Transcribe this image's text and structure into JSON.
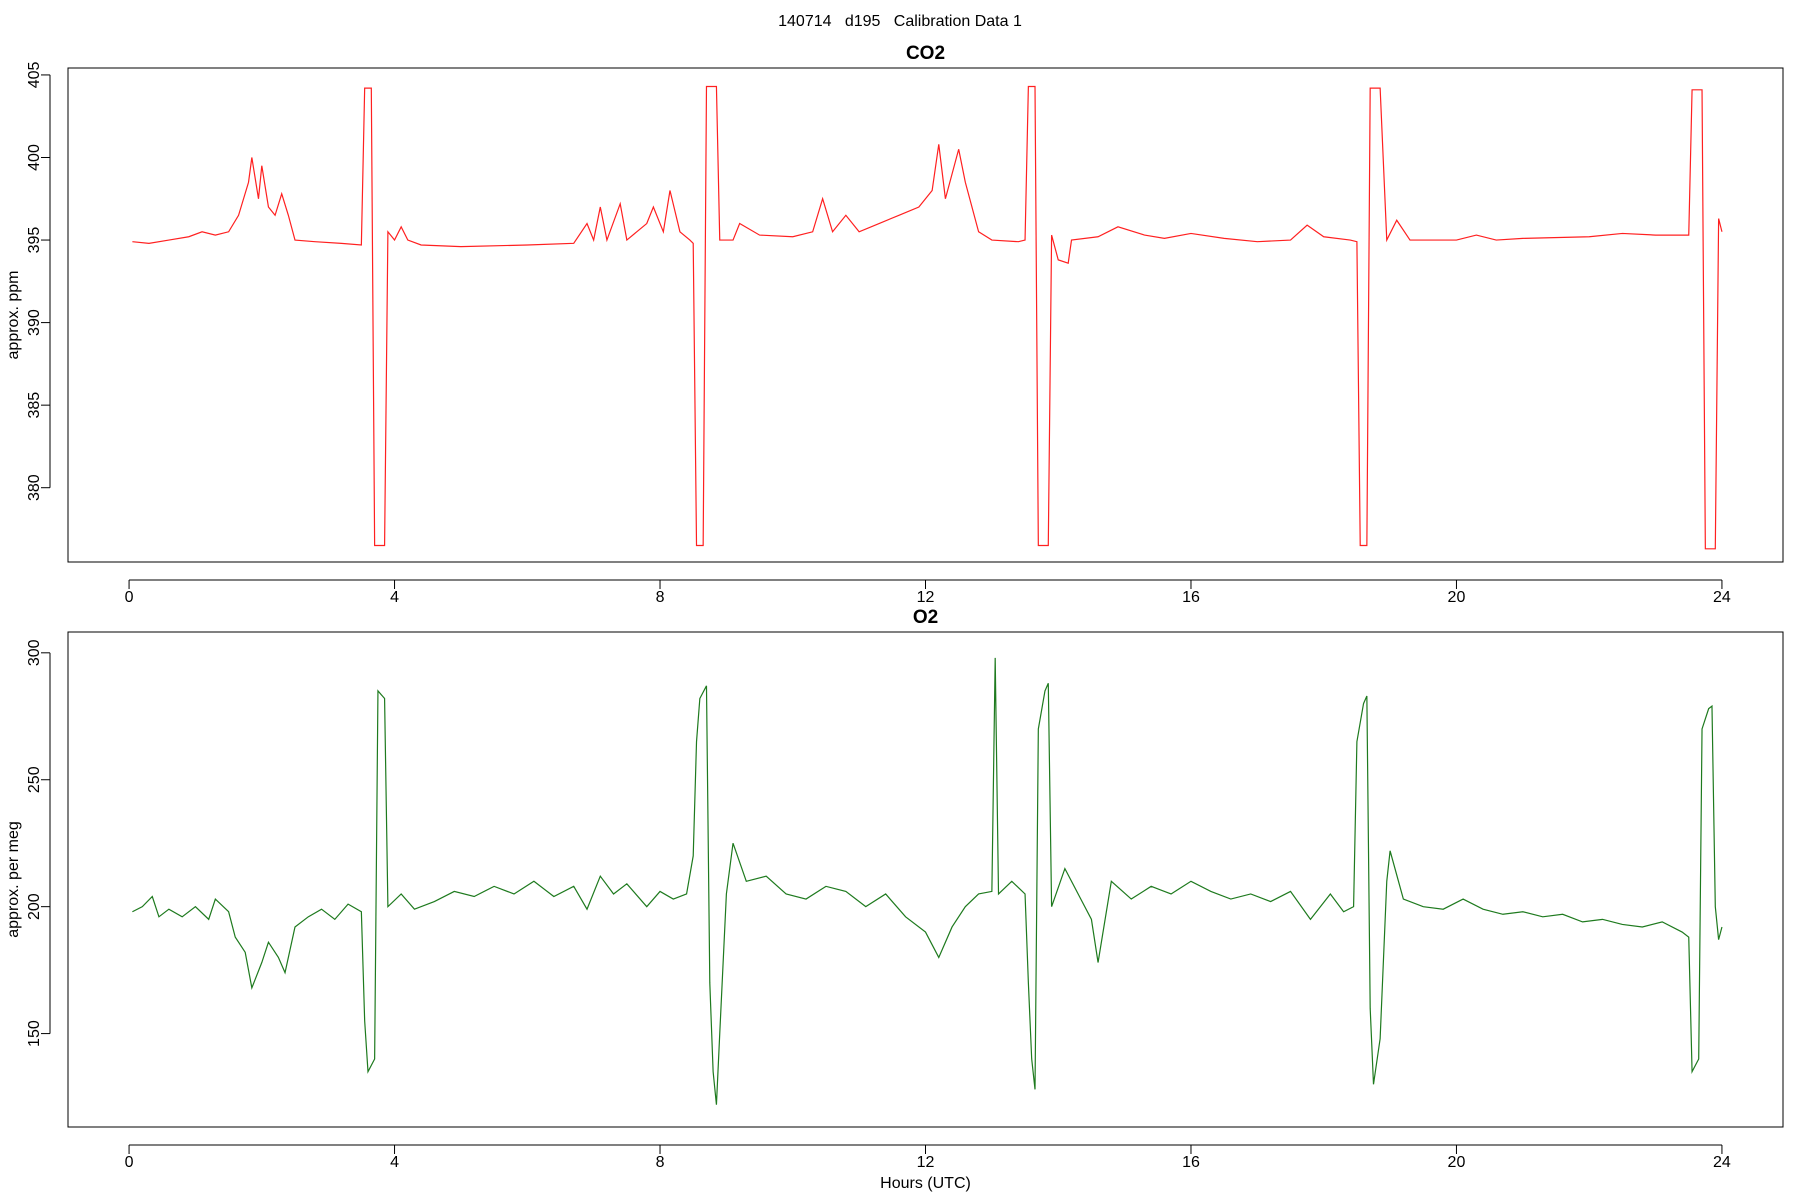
{
  "title": "140714   d195   Calibration Data 1",
  "chart_data": [
    {
      "type": "line",
      "title": "CO2",
      "ylabel": "approx. ppm",
      "color": "#ff2020",
      "xlim": [
        -0.92,
        24.92
      ],
      "xticks": [
        0,
        4,
        8,
        12,
        16,
        20,
        24
      ],
      "ylim": [
        375.5,
        405.42
      ],
      "yticks": [
        380,
        385,
        390,
        395,
        400,
        405
      ],
      "x": [
        0.05,
        0.3,
        0.6,
        0.9,
        1.1,
        1.3,
        1.5,
        1.65,
        1.8,
        1.85,
        1.95,
        2.0,
        2.1,
        2.2,
        2.3,
        2.4,
        2.5,
        2.8,
        3.2,
        3.5,
        3.55,
        3.65,
        3.7,
        3.85,
        3.9,
        4.0,
        4.1,
        4.2,
        4.4,
        5.0,
        6.0,
        6.7,
        6.9,
        7.0,
        7.1,
        7.2,
        7.4,
        7.5,
        7.8,
        7.9,
        8.05,
        8.15,
        8.3,
        8.45,
        8.5,
        8.55,
        8.65,
        8.7,
        8.85,
        8.9,
        9.1,
        9.2,
        9.5,
        10.0,
        10.3,
        10.45,
        10.6,
        10.8,
        11.0,
        11.3,
        11.6,
        11.9,
        12.1,
        12.2,
        12.3,
        12.5,
        12.6,
        12.8,
        13.0,
        13.4,
        13.5,
        13.55,
        13.65,
        13.7,
        13.85,
        13.9,
        14.0,
        14.15,
        14.2,
        14.6,
        14.9,
        15.3,
        15.6,
        16.0,
        16.5,
        17.0,
        17.5,
        17.75,
        18.0,
        18.4,
        18.5,
        18.55,
        18.65,
        18.7,
        18.85,
        18.95,
        19.1,
        19.3,
        20.0,
        20.3,
        20.6,
        21.0,
        22.0,
        22.5,
        23.0,
        23.5,
        23.55,
        23.7,
        23.75,
        23.9,
        23.95,
        24.0
      ],
      "values": [
        394.9,
        394.8,
        395.0,
        395.2,
        395.5,
        395.3,
        395.5,
        396.5,
        398.5,
        400.0,
        397.5,
        399.5,
        397.0,
        396.5,
        397.8,
        396.5,
        395.0,
        394.9,
        394.8,
        394.7,
        404.2,
        404.2,
        376.5,
        376.5,
        395.5,
        395.0,
        395.8,
        395.0,
        394.7,
        394.6,
        394.7,
        394.8,
        396.0,
        395.0,
        397.0,
        395.0,
        397.2,
        395.0,
        396.0,
        397.0,
        395.5,
        398.0,
        395.5,
        395.0,
        394.8,
        376.5,
        376.5,
        404.3,
        404.3,
        395.0,
        395.0,
        396.0,
        395.3,
        395.2,
        395.5,
        397.5,
        395.5,
        396.5,
        395.5,
        396.0,
        396.5,
        397.0,
        398.0,
        400.8,
        397.5,
        400.5,
        398.5,
        395.5,
        395.0,
        394.9,
        395.0,
        404.3,
        404.3,
        376.5,
        376.5,
        395.3,
        393.8,
        393.6,
        395.0,
        395.2,
        395.8,
        395.3,
        395.1,
        395.4,
        395.1,
        394.9,
        395.0,
        395.9,
        395.2,
        395.0,
        394.9,
        376.5,
        376.5,
        404.2,
        404.2,
        395.0,
        396.2,
        395.0,
        395.0,
        395.3,
        395.0,
        395.1,
        395.2,
        395.4,
        395.3,
        395.3,
        404.1,
        404.1,
        376.3,
        376.3,
        396.3,
        395.5
      ]
    },
    {
      "type": "line",
      "title": "O2",
      "ylabel": "approx. per meg",
      "xlabel": "Hours (UTC)",
      "color": "#1e7a1e",
      "xlim": [
        -0.92,
        24.92
      ],
      "xticks": [
        0,
        4,
        8,
        12,
        16,
        20,
        24
      ],
      "ylim": [
        113.2,
        308.2
      ],
      "yticks": [
        150,
        200,
        250,
        300
      ],
      "x": [
        0.05,
        0.2,
        0.35,
        0.45,
        0.6,
        0.8,
        1.0,
        1.2,
        1.3,
        1.5,
        1.6,
        1.75,
        1.85,
        2.0,
        2.1,
        2.25,
        2.35,
        2.5,
        2.7,
        2.9,
        3.1,
        3.3,
        3.5,
        3.55,
        3.6,
        3.7,
        3.75,
        3.85,
        3.9,
        4.1,
        4.3,
        4.6,
        4.9,
        5.2,
        5.5,
        5.8,
        6.1,
        6.4,
        6.7,
        6.9,
        7.1,
        7.3,
        7.5,
        7.8,
        8.0,
        8.2,
        8.4,
        8.5,
        8.55,
        8.6,
        8.7,
        8.75,
        8.8,
        8.85,
        8.9,
        9.0,
        9.1,
        9.3,
        9.6,
        9.9,
        10.2,
        10.5,
        10.8,
        11.1,
        11.4,
        11.7,
        12.0,
        12.2,
        12.4,
        12.6,
        12.8,
        13.0,
        13.05,
        13.1,
        13.3,
        13.5,
        13.55,
        13.6,
        13.65,
        13.7,
        13.8,
        13.85,
        13.9,
        14.1,
        14.3,
        14.5,
        14.6,
        14.8,
        15.1,
        15.4,
        15.7,
        16.0,
        16.3,
        16.6,
        16.9,
        17.2,
        17.5,
        17.8,
        18.1,
        18.3,
        18.45,
        18.5,
        18.6,
        18.65,
        18.7,
        18.75,
        18.85,
        18.95,
        19.0,
        19.2,
        19.5,
        19.8,
        20.1,
        20.4,
        20.7,
        21.0,
        21.3,
        21.6,
        21.9,
        22.2,
        22.5,
        22.8,
        23.1,
        23.4,
        23.5,
        23.55,
        23.65,
        23.7,
        23.8,
        23.85,
        23.9,
        23.95,
        24.0
      ],
      "values": [
        198,
        200,
        204,
        196,
        199,
        196,
        200,
        195,
        203,
        198,
        188,
        182,
        168,
        178,
        186,
        180,
        174,
        192,
        196,
        199,
        195,
        201,
        198,
        155,
        135,
        140,
        285,
        282,
        200,
        205,
        199,
        202,
        206,
        204,
        208,
        205,
        210,
        204,
        208,
        199,
        212,
        205,
        209,
        200,
        206,
        203,
        205,
        220,
        265,
        282,
        287,
        170,
        135,
        122,
        150,
        205,
        225,
        210,
        212,
        205,
        203,
        208,
        206,
        200,
        205,
        196,
        190,
        180,
        192,
        200,
        205,
        206,
        298,
        205,
        210,
        205,
        170,
        140,
        128,
        270,
        285,
        288,
        200,
        215,
        205,
        195,
        178,
        210,
        203,
        208,
        205,
        210,
        206,
        203,
        205,
        202,
        206,
        195,
        205,
        198,
        200,
        265,
        280,
        283,
        160,
        130,
        148,
        210,
        222,
        203,
        200,
        199,
        203,
        199,
        197,
        198,
        196,
        197,
        194,
        195,
        193,
        192,
        194,
        190,
        188,
        135,
        140,
        270,
        278,
        279,
        200,
        187,
        192
      ]
    }
  ]
}
